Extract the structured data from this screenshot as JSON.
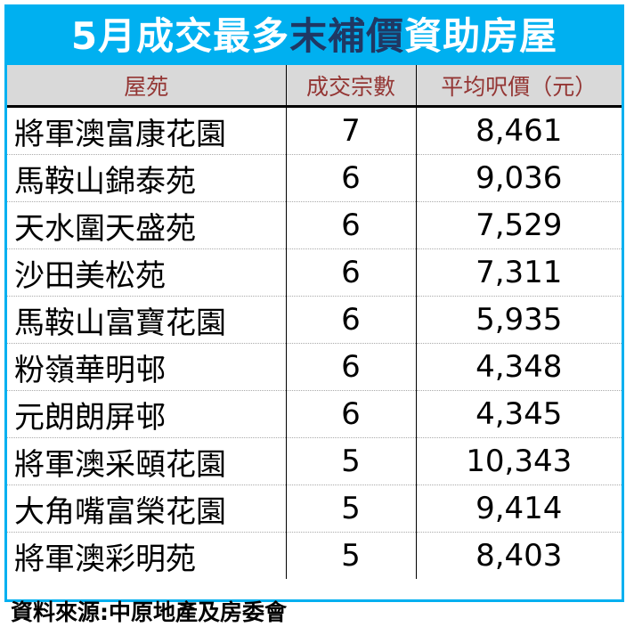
{
  "title": {
    "part1": "5月成交最多",
    "highlight": "末補價",
    "part2": "資助房屋",
    "highlight_color": "#1f3864",
    "band_color": "#00b0f0"
  },
  "table": {
    "headers": [
      "屋苑",
      "成交宗數",
      "平均呎價（元）"
    ],
    "rows": [
      {
        "estate": "將軍澳富康花園",
        "count": "7",
        "price": "8,461"
      },
      {
        "estate": "馬鞍山錦泰苑",
        "count": "6",
        "price": "9,036"
      },
      {
        "estate": "天水圍天盛苑",
        "count": "6",
        "price": "7,529"
      },
      {
        "estate": "沙田美松苑",
        "count": "6",
        "price": "7,311"
      },
      {
        "estate": "馬鞍山富寶花園",
        "count": "6",
        "price": "5,935"
      },
      {
        "estate": "粉嶺華明邨",
        "count": "6",
        "price": "4,348"
      },
      {
        "estate": "元朗朗屏邨",
        "count": "6",
        "price": "4,345"
      },
      {
        "estate": "將軍澳采頤花園",
        "count": "5",
        "price": "10,343"
      },
      {
        "estate": "大角嘴富榮花園",
        "count": "5",
        "price": "9,414"
      },
      {
        "estate": "將軍澳彩明苑",
        "count": "5",
        "price": "8,403"
      }
    ]
  },
  "source": "資料來源:中原地產及房委會"
}
